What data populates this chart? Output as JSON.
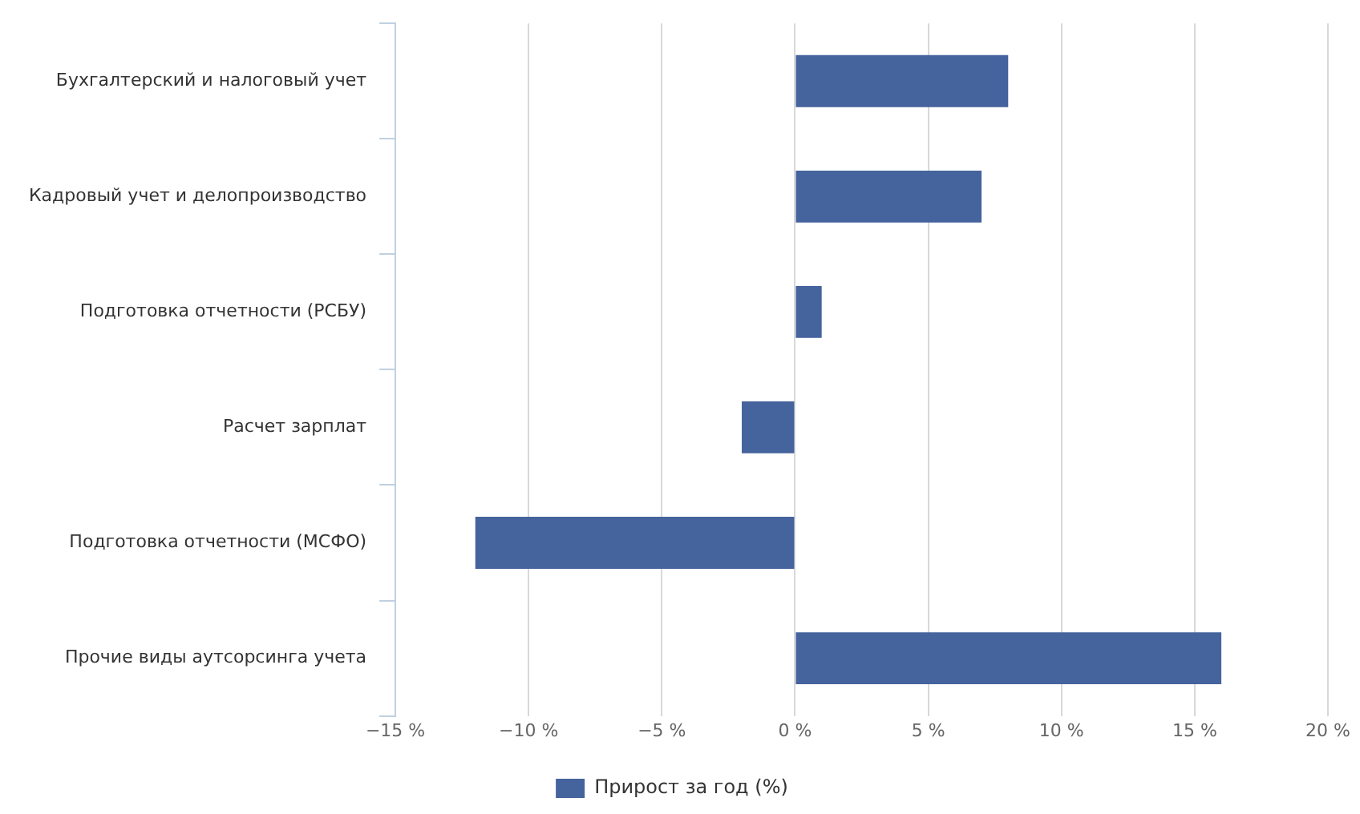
{
  "chart_data": {
    "type": "bar",
    "orientation": "horizontal",
    "categories": [
      "Бухгалтерский и налоговый учет",
      "Кадровый учет и делопроизводство",
      "Подготовка отчетности (РСБУ)",
      "Расчет зарплат",
      "Подготовка отчетности (МСФО)",
      "Прочие виды аутсорсинга учета"
    ],
    "series": [
      {
        "name": "Прирост за год (%)",
        "color": "#45639d",
        "values": [
          8,
          7,
          1,
          -2,
          -12,
          16
        ]
      }
    ],
    "xlim": [
      -15,
      20
    ],
    "xticks": [
      {
        "value": -15,
        "label": "−15 %"
      },
      {
        "value": -10,
        "label": "−10 %"
      },
      {
        "value": -5,
        "label": "−5 %"
      },
      {
        "value": 0,
        "label": "0 %"
      },
      {
        "value": 5,
        "label": "5 %"
      },
      {
        "value": 10,
        "label": "10 %"
      },
      {
        "value": 15,
        "label": "15 %"
      },
      {
        "value": 20,
        "label": "20 %"
      }
    ],
    "grid": "x",
    "legend": "bottom"
  }
}
